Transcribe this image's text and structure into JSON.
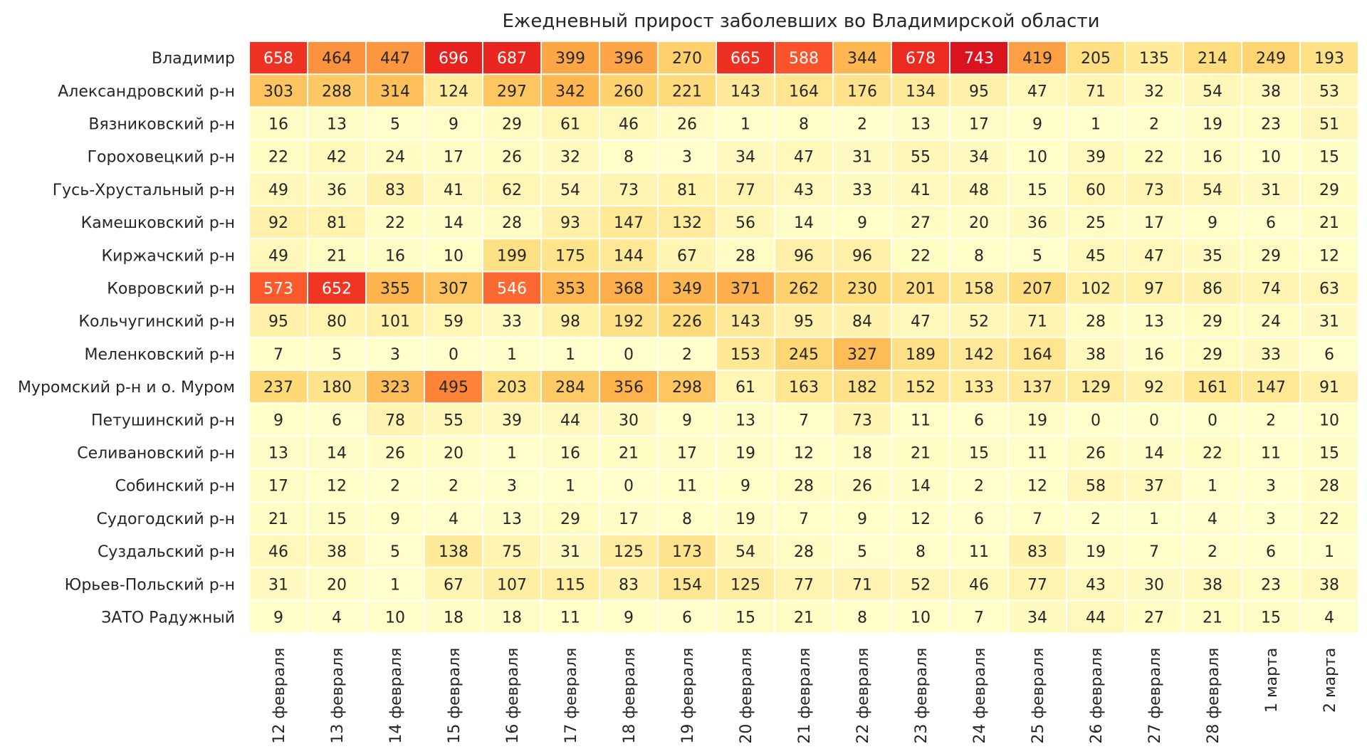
{
  "chart_data": {
    "type": "heatmap",
    "title": "Ежедневный прирост заболевших во Владимирской области",
    "xlabel": "",
    "ylabel": "",
    "colormap": "YlOrRd",
    "vmin": 0,
    "vmax": 743,
    "columns": [
      "12 февраля",
      "13 февраля",
      "14 февраля",
      "15 февраля",
      "16 февраля",
      "17 февраля",
      "18 февраля",
      "19 февраля",
      "20 февраля",
      "21 февраля",
      "22 февраля",
      "23 февраля",
      "24 февраля",
      "25 февраля",
      "26 февраля",
      "27 февраля",
      "28 февраля",
      "1 марта",
      "2 марта"
    ],
    "rows": [
      "Владимир",
      "Александровский р-н",
      "Вязниковский р-н",
      "Гороховецкий р-н",
      "Гусь-Хрустальный р-н",
      "Камешковский р-н",
      "Киржачский р-н",
      "Ковровский р-н",
      "Кольчугинский р-н",
      "Меленковский р-н",
      "Муромский р-н и о. Муром",
      "Петушинский р-н",
      "Селивановский р-н",
      "Собинский р-н",
      "Судогодский р-н",
      "Суздальский р-н",
      "Юрьев-Польский р-н",
      "ЗАТО Радужный"
    ],
    "values": [
      [
        658,
        464,
        447,
        696,
        687,
        399,
        396,
        270,
        665,
        588,
        344,
        678,
        743,
        419,
        205,
        135,
        214,
        249,
        193
      ],
      [
        303,
        288,
        314,
        124,
        297,
        342,
        260,
        221,
        143,
        164,
        176,
        134,
        95,
        47,
        71,
        32,
        54,
        38,
        53
      ],
      [
        16,
        13,
        5,
        9,
        29,
        61,
        46,
        26,
        1,
        8,
        2,
        13,
        17,
        9,
        1,
        2,
        19,
        23,
        51
      ],
      [
        22,
        42,
        24,
        17,
        26,
        32,
        8,
        3,
        34,
        47,
        31,
        55,
        34,
        10,
        39,
        22,
        16,
        10,
        15
      ],
      [
        49,
        36,
        83,
        41,
        62,
        54,
        73,
        81,
        77,
        43,
        33,
        41,
        48,
        15,
        60,
        73,
        54,
        31,
        29
      ],
      [
        92,
        81,
        22,
        14,
        28,
        93,
        147,
        132,
        56,
        14,
        9,
        27,
        20,
        36,
        25,
        17,
        9,
        6,
        21
      ],
      [
        49,
        21,
        16,
        10,
        199,
        175,
        144,
        67,
        28,
        96,
        96,
        22,
        8,
        5,
        45,
        47,
        35,
        29,
        12
      ],
      [
        573,
        652,
        355,
        307,
        546,
        353,
        368,
        349,
        371,
        262,
        230,
        201,
        158,
        207,
        102,
        97,
        86,
        74,
        63
      ],
      [
        95,
        80,
        101,
        59,
        33,
        98,
        192,
        226,
        143,
        95,
        84,
        47,
        52,
        71,
        28,
        13,
        29,
        24,
        31
      ],
      [
        7,
        5,
        3,
        0,
        1,
        1,
        0,
        2,
        153,
        245,
        327,
        189,
        142,
        164,
        38,
        16,
        29,
        33,
        6
      ],
      [
        237,
        180,
        323,
        495,
        203,
        284,
        356,
        298,
        61,
        163,
        182,
        152,
        133,
        137,
        129,
        92,
        161,
        147,
        91
      ],
      [
        9,
        6,
        78,
        55,
        39,
        44,
        30,
        9,
        13,
        7,
        73,
        11,
        6,
        19,
        0,
        0,
        0,
        2,
        10
      ],
      [
        13,
        14,
        26,
        20,
        1,
        16,
        21,
        17,
        19,
        12,
        18,
        21,
        15,
        11,
        26,
        14,
        22,
        11,
        15
      ],
      [
        17,
        12,
        2,
        2,
        3,
        1,
        0,
        11,
        9,
        28,
        26,
        14,
        2,
        12,
        58,
        37,
        1,
        3,
        28
      ],
      [
        21,
        15,
        9,
        4,
        13,
        29,
        17,
        8,
        19,
        7,
        9,
        12,
        6,
        7,
        2,
        1,
        4,
        3,
        22
      ],
      [
        46,
        38,
        5,
        138,
        75,
        31,
        125,
        173,
        54,
        28,
        5,
        8,
        11,
        83,
        19,
        7,
        2,
        6,
        1
      ],
      [
        31,
        20,
        1,
        67,
        107,
        115,
        83,
        154,
        125,
        77,
        71,
        52,
        46,
        77,
        43,
        30,
        38,
        23,
        38
      ],
      [
        9,
        4,
        10,
        18,
        18,
        11,
        9,
        6,
        15,
        21,
        8,
        10,
        7,
        34,
        44,
        27,
        21,
        15,
        4
      ]
    ]
  }
}
